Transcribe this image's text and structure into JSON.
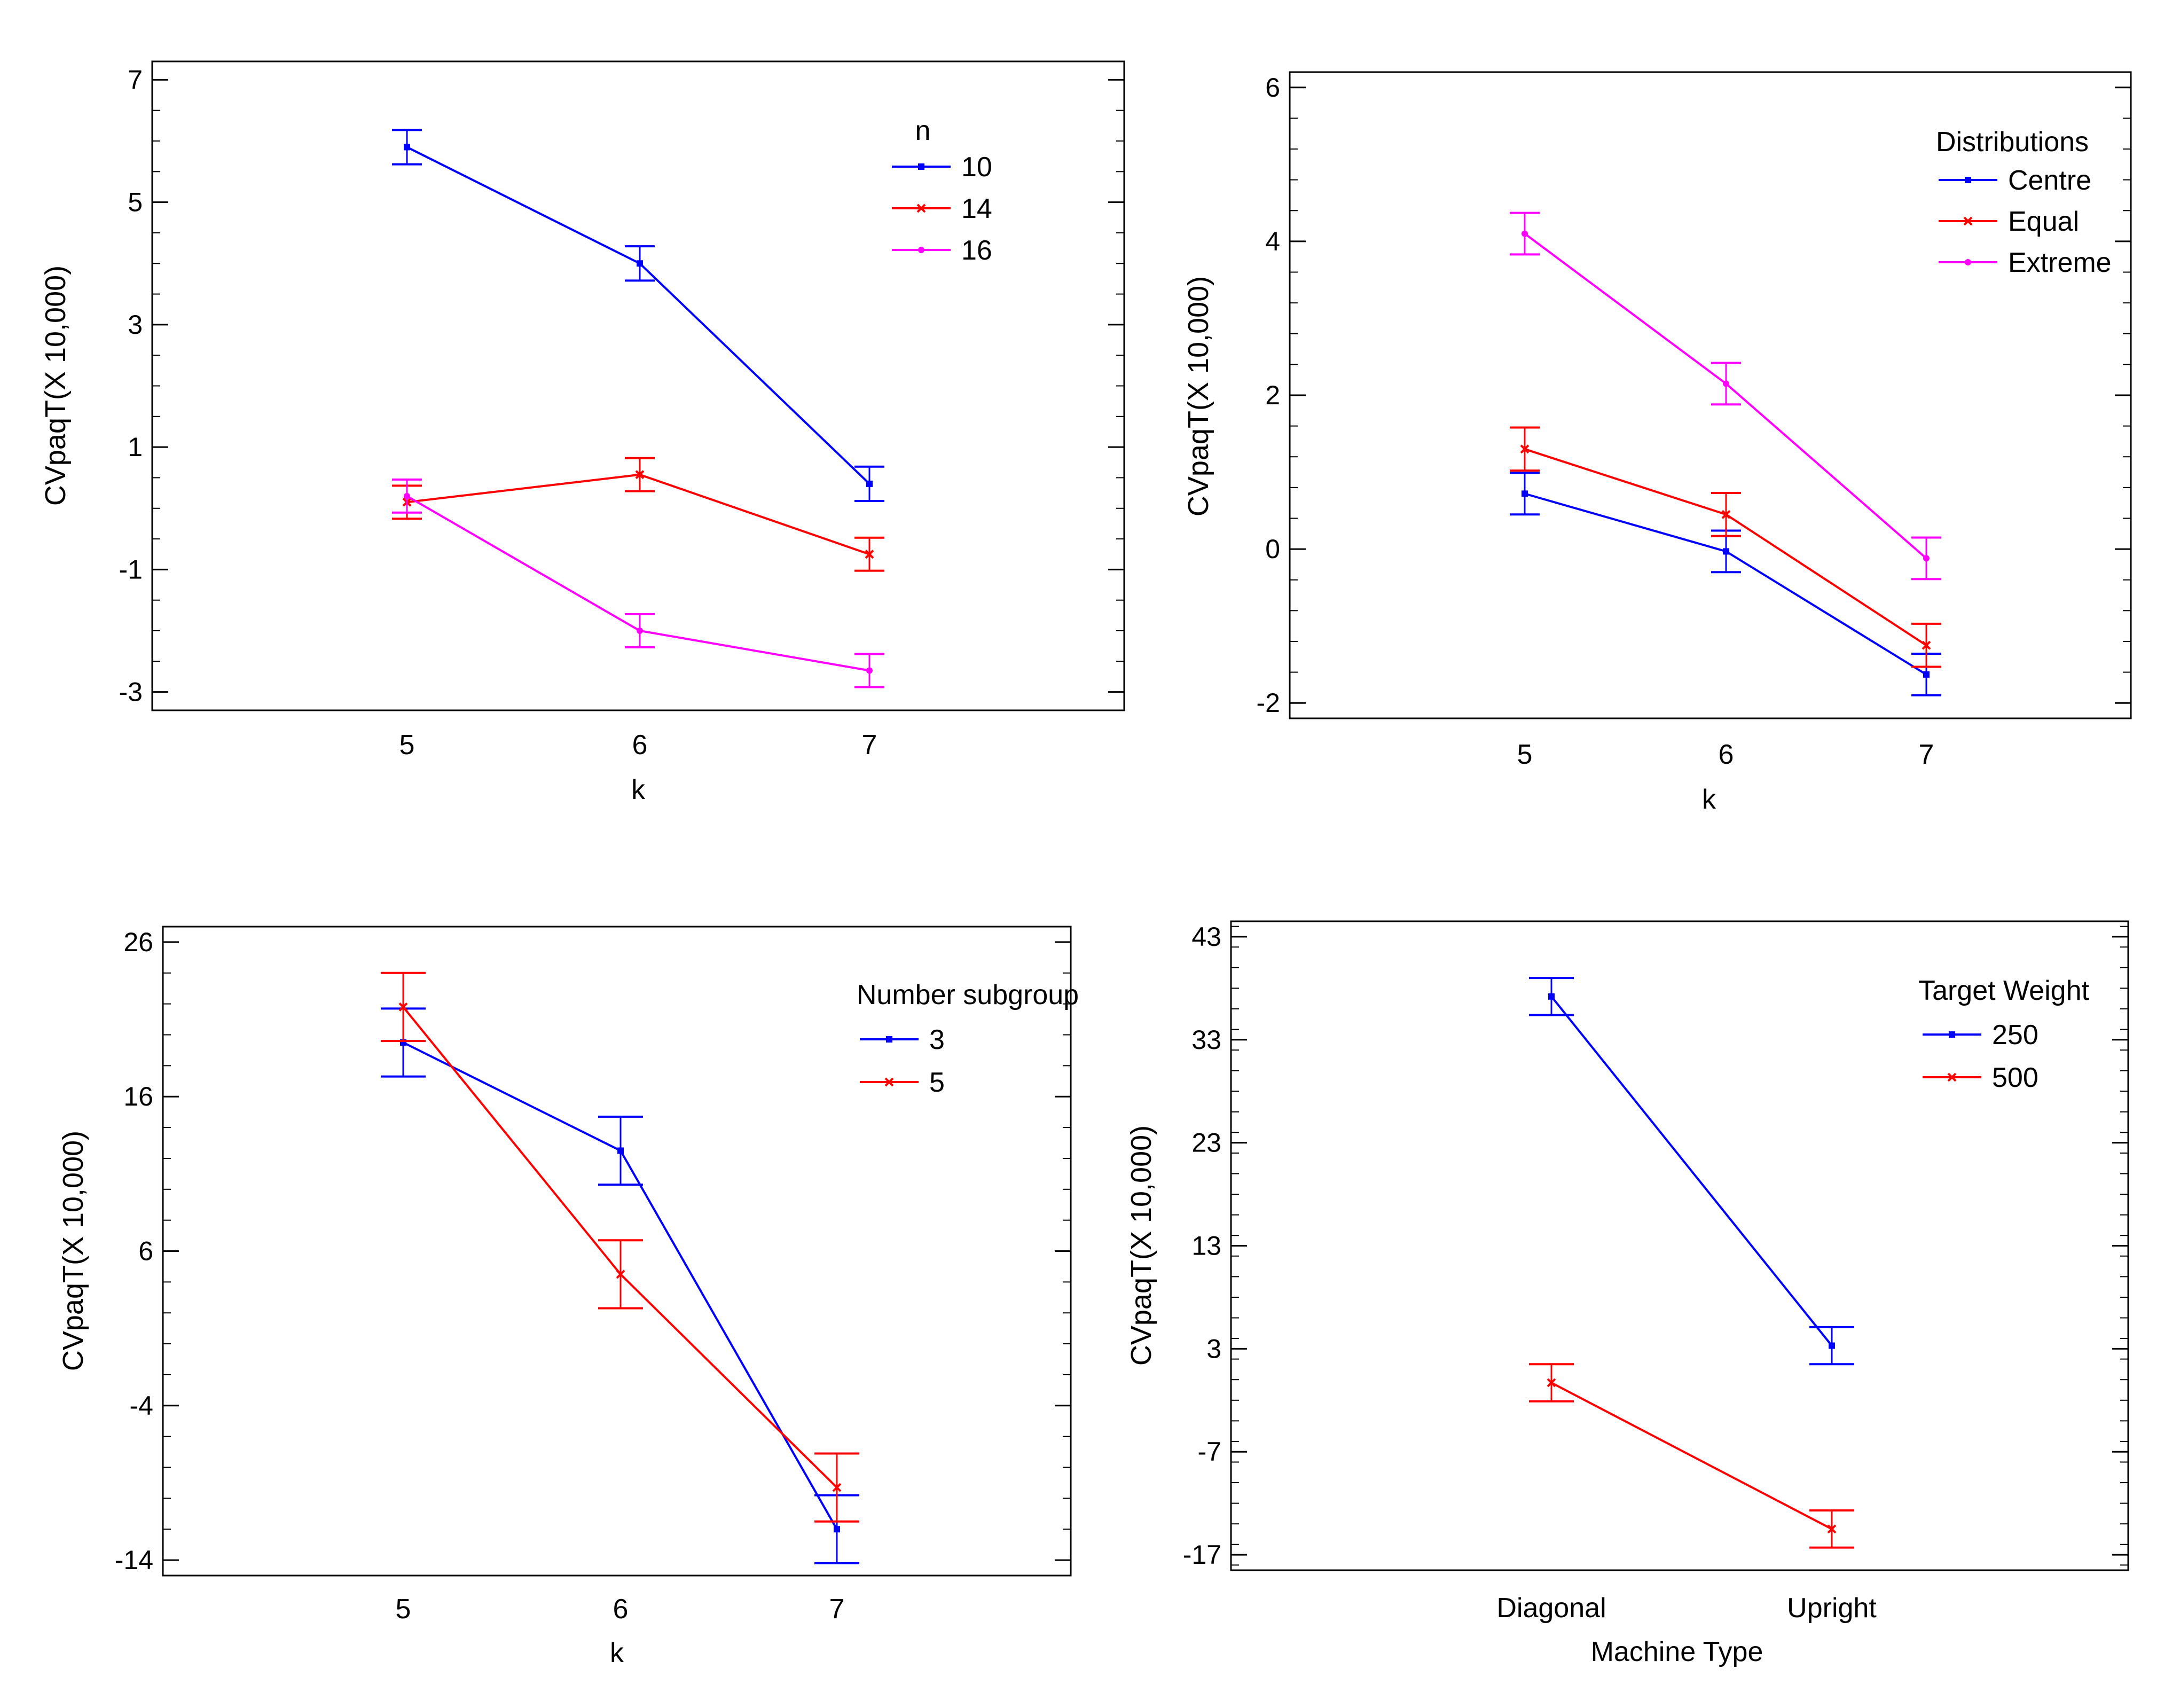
{
  "chart_data": [
    {
      "type": "line",
      "title": "",
      "xlabel": "k",
      "ylabel": "CVpaqT(X 10,000)",
      "categories": [
        "5",
        "6",
        "7"
      ],
      "ylim": [
        -3.3,
        7.3
      ],
      "yticks": [
        7,
        5,
        3,
        1,
        -1,
        -3
      ],
      "ytick_labels": [
        "7",
        "5",
        "3",
        "1",
        "-1",
        "-3"
      ],
      "minor_step": 0.5,
      "legend_title": "n",
      "legend_position": "top-right",
      "series": [
        {
          "name": "10",
          "color": "#0000ff",
          "marker": "square",
          "values": [
            5.9,
            4.0,
            0.4
          ],
          "err": [
            0.28,
            0.28,
            0.28
          ]
        },
        {
          "name": "14",
          "color": "#ff0000",
          "marker": "x",
          "values": [
            0.1,
            0.55,
            -0.75
          ],
          "err": [
            0.27,
            0.27,
            0.27
          ]
        },
        {
          "name": "16",
          "color": "#ff00ff",
          "marker": "dot",
          "values": [
            0.2,
            -2.0,
            -2.65
          ],
          "err": [
            0.27,
            0.27,
            0.27
          ]
        }
      ]
    },
    {
      "type": "line",
      "title": "",
      "xlabel": "k",
      "ylabel": "CVpaqT(X 10,000)",
      "categories": [
        "5",
        "6",
        "7"
      ],
      "ylim": [
        -2.2,
        6.2
      ],
      "yticks": [
        6,
        4,
        2,
        0,
        -2
      ],
      "ytick_labels": [
        "6",
        "4",
        "2",
        "0",
        "-2"
      ],
      "minor_step": 0.4,
      "legend_title": "Distributions",
      "legend_position": "top-right",
      "series": [
        {
          "name": "Centre",
          "color": "#0000ff",
          "marker": "square",
          "values": [
            0.72,
            -0.03,
            -1.63
          ],
          "err": [
            0.27,
            0.27,
            0.27
          ]
        },
        {
          "name": "Equal",
          "color": "#ff0000",
          "marker": "x",
          "values": [
            1.3,
            0.45,
            -1.25
          ],
          "err": [
            0.28,
            0.28,
            0.28
          ]
        },
        {
          "name": "Extreme",
          "color": "#ff00ff",
          "marker": "dot",
          "values": [
            4.1,
            2.15,
            -0.12
          ],
          "err": [
            0.27,
            0.27,
            0.27
          ]
        }
      ]
    },
    {
      "type": "line",
      "title": "",
      "xlabel": "k",
      "ylabel": "CVpaqT(X 10,000)",
      "categories": [
        "5",
        "6",
        "7"
      ],
      "ylim": [
        -15,
        27
      ],
      "yticks": [
        26,
        16,
        6,
        -4,
        -14
      ],
      "ytick_labels": [
        "26",
        "16",
        "6",
        "-4",
        "-14"
      ],
      "minor_step": 2,
      "legend_title": "Number subgroup",
      "legend_position": "top-right",
      "series": [
        {
          "name": "3",
          "color": "#0000ff",
          "marker": "square",
          "values": [
            19.5,
            12.5,
            -12.0
          ],
          "err": [
            2.2,
            2.2,
            2.2
          ]
        },
        {
          "name": "5",
          "color": "#ff0000",
          "marker": "x",
          "values": [
            21.8,
            4.5,
            -9.3
          ],
          "err": [
            2.2,
            2.2,
            2.2
          ]
        }
      ]
    },
    {
      "type": "line",
      "title": "",
      "xlabel": "Machine Type",
      "ylabel": "CVpaqT(X 10,000)",
      "categories": [
        "Diagonal",
        "Upright"
      ],
      "ylim": [
        -18.5,
        44.5
      ],
      "yticks": [
        43,
        33,
        23,
        13,
        3,
        -7,
        -17
      ],
      "ytick_labels": [
        "43",
        "33",
        "23",
        "13",
        "3",
        "-7",
        "-17"
      ],
      "minor_step": 2,
      "legend_title": "Target Weight",
      "legend_position": "top-right",
      "series": [
        {
          "name": "250",
          "color": "#0000ff",
          "marker": "square",
          "values": [
            37.2,
            3.3
          ],
          "err": [
            1.8,
            1.8
          ]
        },
        {
          "name": "500",
          "color": "#ff0000",
          "marker": "x",
          "values": [
            -0.3,
            -14.5
          ],
          "err": [
            1.8,
            1.8
          ]
        }
      ]
    }
  ]
}
